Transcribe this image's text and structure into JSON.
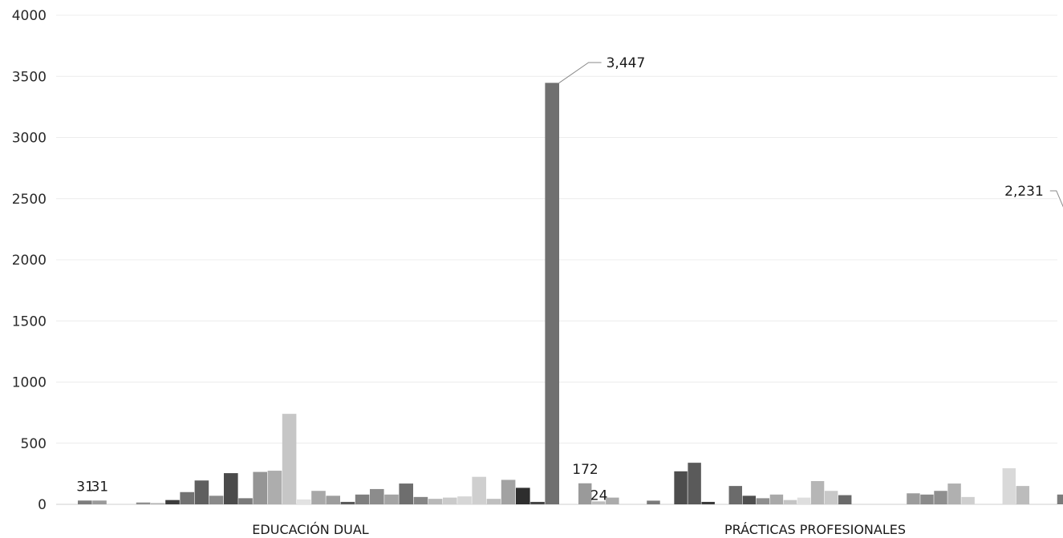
{
  "chart_data": {
    "type": "bar",
    "categories": [
      "EDUCACIÓN DUAL",
      "PRÁCTICAS PROFESIONALES"
    ],
    "ylim": [
      0,
      4000
    ],
    "yticks": [
      "0",
      "500",
      "1000",
      "1500",
      "2000",
      "2500",
      "3000",
      "3500",
      "4000"
    ],
    "grid": true,
    "groups": [
      {
        "category": "EDUCACIÓN DUAL",
        "values": [
          31,
          31,
          0,
          0,
          15,
          10,
          35,
          100,
          195,
          70,
          255,
          50,
          265,
          275,
          740,
          40,
          110,
          70,
          20,
          80,
          125,
          80,
          170,
          60,
          45,
          55,
          65,
          225,
          45,
          200,
          135,
          20,
          3447
        ],
        "colors": [
          "#7d7d7d",
          "#9a9a9a",
          "#bdbdbd",
          "#d4d4d4",
          "#8f8f8f",
          "#b1b1b1",
          "#3c3c3c",
          "#727272",
          "#5f5f5f",
          "#8a8a8a",
          "#4b4b4b",
          "#7a7a7a",
          "#959595",
          "#adadad",
          "#c6c6c6",
          "#e2e2e2",
          "#a8a8a8",
          "#9d9d9d",
          "#5a5a5a",
          "#7f7f7f",
          "#8c8c8c",
          "#a4a4a4",
          "#6e6e6e",
          "#858585",
          "#b8b8b8",
          "#cacaca",
          "#d6d6d6",
          "#cfcfcf",
          "#bfbfbf",
          "#a2a2a2",
          "#2e2e2e",
          "#464646",
          "#707070"
        ]
      },
      {
        "category": "PRÁCTICAS PROFESIONALES",
        "values": [
          172,
          24,
          55,
          0,
          0,
          30,
          0,
          270,
          340,
          20,
          0,
          150,
          70,
          50,
          80,
          35,
          55,
          190,
          110,
          75,
          0,
          0,
          0,
          0,
          90,
          80,
          110,
          170,
          60,
          0,
          0,
          295,
          150,
          0,
          0,
          80,
          2231
        ],
        "colors": [
          "#9a9a9a",
          "#bdbdbd",
          "#ababab",
          "#d4d4d4",
          "#e0e0e0",
          "#7a7a7a",
          "#cccccc",
          "#4d4d4d",
          "#5a5a5a",
          "#3a3a3a",
          "#d8d8d8",
          "#6b6b6b",
          "#4f4f4f",
          "#8e8e8e",
          "#a9a9a9",
          "#c4c4c4",
          "#dedede",
          "#b6b6b6",
          "#c8c8c8",
          "#6a6a6a",
          "#dddddd",
          "#dddddd",
          "#dddddd",
          "#dddddd",
          "#9c9c9c",
          "#8a8a8a",
          "#8f8f8f",
          "#b0b0b0",
          "#cfcfcf",
          "#dddddd",
          "#dddddd",
          "#d9d9d9",
          "#bcbcbc",
          "#dddddd",
          "#dddddd",
          "#7c7c7c",
          "#6f6f6f"
        ]
      }
    ],
    "data_labels": [
      {
        "text": "31",
        "group": 0,
        "index": 0,
        "leader": false
      },
      {
        "text": "31",
        "group": 0,
        "index": 1,
        "leader": false
      },
      {
        "text": "3,447",
        "group": 0,
        "index": 32,
        "leader": true
      },
      {
        "text": "172",
        "group": 1,
        "index": 0,
        "leader": false
      },
      {
        "text": "24",
        "group": 1,
        "index": 1,
        "leader": false
      },
      {
        "text": "2,231",
        "group": 1,
        "index": 36,
        "leader": true
      }
    ]
  }
}
